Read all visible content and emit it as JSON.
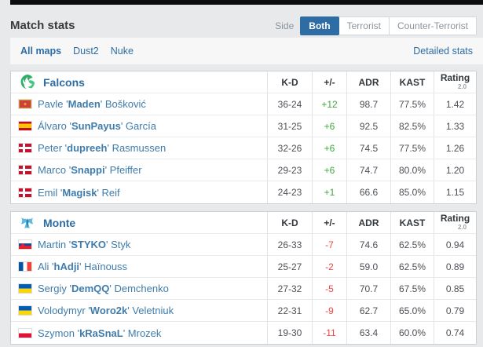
{
  "title": "Match stats",
  "side_filter": {
    "label": "Side",
    "options": [
      {
        "label": "Both",
        "active": true
      },
      {
        "label": "Terrorist",
        "active": false
      },
      {
        "label": "Counter-Terrorist",
        "active": false
      }
    ]
  },
  "maps_filter": {
    "items": [
      {
        "label": "All maps",
        "active": true
      },
      {
        "label": "Dust2",
        "active": false
      },
      {
        "label": "Nuke",
        "active": false
      }
    ],
    "detailed_stats_label": "Detailed stats"
  },
  "columns": [
    "K-D",
    "+/-",
    "ADR",
    "KAST",
    "Rating"
  ],
  "rating_version": "2.0",
  "colors": {
    "accent_blue": "#2d6da3",
    "link_blue": "#3f7cab",
    "positive_green": "#3fa73f",
    "negative_red": "#f04545",
    "falcons_green": "#2fae68",
    "monte_blue": "#5bbcdb"
  },
  "teams": [
    {
      "name": "Falcons",
      "logo": "falcons-logo",
      "players": [
        {
          "flag": "montenegro",
          "first": "Pavle",
          "nick": "Maden",
          "last": "Bošković",
          "kd": "36-24",
          "plusminus": "+12",
          "adr": "98.7",
          "kast": "77.5%",
          "rating": "1.42",
          "diff": "positive"
        },
        {
          "flag": "spain",
          "first": "Álvaro",
          "nick": "SunPayus",
          "last": "García",
          "kd": "31-25",
          "plusminus": "+6",
          "adr": "92.5",
          "kast": "82.5%",
          "rating": "1.33",
          "diff": "positive"
        },
        {
          "flag": "denmark",
          "first": "Peter",
          "nick": "dupreeh",
          "last": "Rasmussen",
          "kd": "32-26",
          "plusminus": "+6",
          "adr": "74.5",
          "kast": "77.5%",
          "rating": "1.26",
          "diff": "positive"
        },
        {
          "flag": "denmark",
          "first": "Marco",
          "nick": "Snappi",
          "last": "Pfeiffer",
          "kd": "29-23",
          "plusminus": "+6",
          "adr": "74.7",
          "kast": "80.0%",
          "rating": "1.20",
          "diff": "positive"
        },
        {
          "flag": "denmark",
          "first": "Emil",
          "nick": "Magisk",
          "last": "Reif",
          "kd": "24-23",
          "plusminus": "+1",
          "adr": "66.6",
          "kast": "85.0%",
          "rating": "1.15",
          "diff": "positive"
        }
      ]
    },
    {
      "name": "Monte",
      "logo": "monte-logo",
      "players": [
        {
          "flag": "slovakia",
          "first": "Martin",
          "nick": "STYKO",
          "last": "Styk",
          "kd": "26-33",
          "plusminus": "-7",
          "adr": "74.6",
          "kast": "62.5%",
          "rating": "0.94",
          "diff": "negative"
        },
        {
          "flag": "france",
          "first": "Ali",
          "nick": "hAdji",
          "last": "Haïnouss",
          "kd": "25-27",
          "plusminus": "-2",
          "adr": "59.0",
          "kast": "62.5%",
          "rating": "0.89",
          "diff": "negative"
        },
        {
          "flag": "ukraine",
          "first": "Sergiy",
          "nick": "DemQQ",
          "last": "Demchenko",
          "kd": "27-32",
          "plusminus": "-5",
          "adr": "70.7",
          "kast": "67.5%",
          "rating": "0.85",
          "diff": "negative"
        },
        {
          "flag": "ukraine",
          "first": "Volodymyr",
          "nick": "Woro2k",
          "last": "Veletniuk",
          "kd": "22-31",
          "plusminus": "-9",
          "adr": "62.7",
          "kast": "65.0%",
          "rating": "0.79",
          "diff": "negative"
        },
        {
          "flag": "poland",
          "first": "Szymon",
          "nick": "kRaSnaL",
          "last": "Mrozek",
          "kd": "19-30",
          "plusminus": "-11",
          "adr": "63.4",
          "kast": "60.0%",
          "rating": "0.74",
          "diff": "negative"
        }
      ]
    }
  ]
}
